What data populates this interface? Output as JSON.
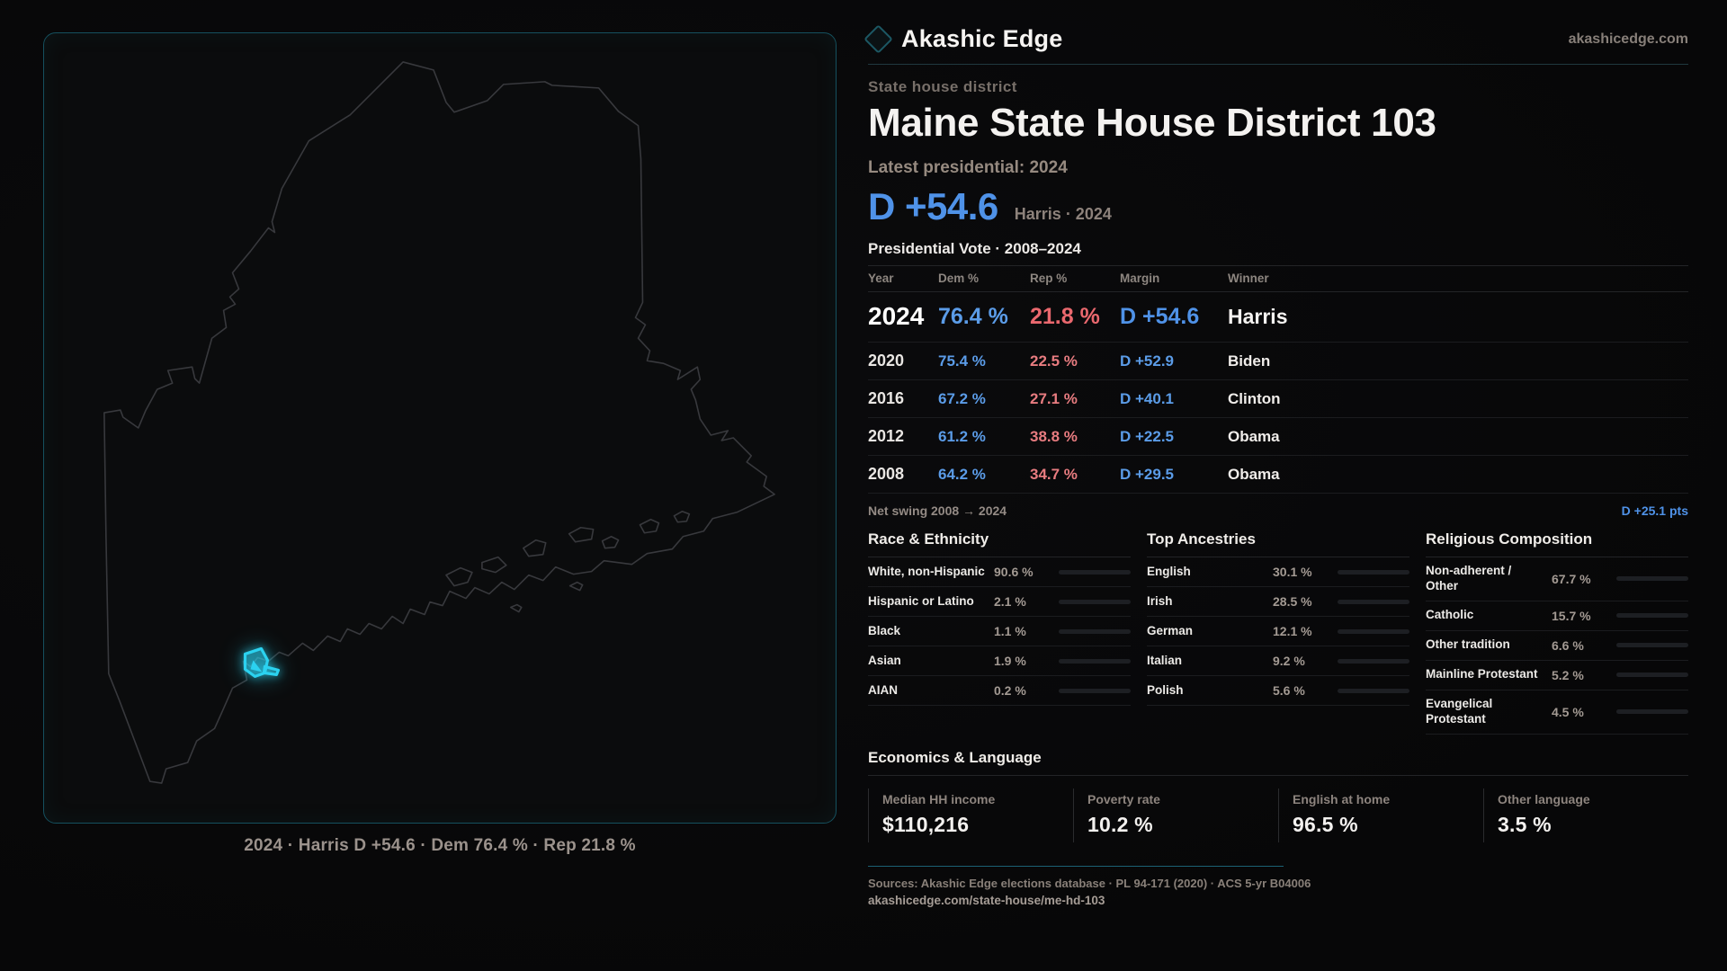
{
  "brand": {
    "name": "Akashic Edge",
    "domain": "akashicedge.com"
  },
  "page": {
    "kicker": "State house district",
    "title": "Maine State House District 103",
    "latest_label": "Latest presidential: 2024",
    "headline_margin": "D +54.6",
    "headline_detail": "Harris · 2024",
    "table_title": "Presidential Vote · 2008–2024"
  },
  "map": {
    "caption": "2024 · Harris D +54.6 · Dem 76.4 % · Rep 21.8 %",
    "district_color": "#2bd2f0",
    "outline_color": "#38393d"
  },
  "vote_table": {
    "columns": [
      "Year",
      "Dem %",
      "Rep %",
      "Margin",
      "Winner"
    ],
    "rows": [
      {
        "year": "2024",
        "dem": "76.4 %",
        "rep": "21.8 %",
        "margin": "D +54.6",
        "winner": "Harris"
      },
      {
        "year": "2020",
        "dem": "75.4 %",
        "rep": "22.5 %",
        "margin": "D +52.9",
        "winner": "Biden"
      },
      {
        "year": "2016",
        "dem": "67.2 %",
        "rep": "27.1 %",
        "margin": "D +40.1",
        "winner": "Clinton"
      },
      {
        "year": "2012",
        "dem": "61.2 %",
        "rep": "38.8 %",
        "margin": "D +22.5",
        "winner": "Obama"
      },
      {
        "year": "2008",
        "dem": "64.2 %",
        "rep": "34.7 %",
        "margin": "D +29.5",
        "winner": "Obama"
      }
    ],
    "net_swing_label": "Net swing 2008 → 2024",
    "net_swing_value": "D +25.1 pts"
  },
  "demographics": {
    "race": {
      "title": "Race & Ethnicity",
      "rows": [
        {
          "label": "White, non-Hispanic",
          "value": "90.6 %",
          "pct": 90.6,
          "color": "#9eb1c9"
        },
        {
          "label": "Hispanic or Latino",
          "value": "2.1 %",
          "pct": 2.1,
          "color": "#df9429"
        },
        {
          "label": "Black",
          "value": "1.1 %",
          "pct": 1.1,
          "color": "#9388e4"
        },
        {
          "label": "Asian",
          "value": "1.9 %",
          "pct": 1.9,
          "color": "#2fbb8b"
        },
        {
          "label": "AIAN",
          "value": "0.2 %",
          "pct": 0.2,
          "color": "#9eb1c9"
        }
      ]
    },
    "ancestries": {
      "title": "Top Ancestries",
      "rows": [
        {
          "label": "English",
          "value": "30.1 %",
          "pct": 30.1,
          "color": "#9eb1c9"
        },
        {
          "label": "Irish",
          "value": "28.5 %",
          "pct": 28.5,
          "color": "#9eb1c9"
        },
        {
          "label": "German",
          "value": "12.1 %",
          "pct": 12.1,
          "color": "#9eb1c9"
        },
        {
          "label": "Italian",
          "value": "9.2 %",
          "pct": 9.2,
          "color": "#9eb1c9"
        },
        {
          "label": "Polish",
          "value": "5.6 %",
          "pct": 5.6,
          "color": "#9eb1c9"
        }
      ]
    },
    "religion": {
      "title": "Religious Composition",
      "rows": [
        {
          "label": "Non-adherent / Other",
          "value": "67.7 %",
          "pct": 67.7,
          "color": "#7b8695"
        },
        {
          "label": "Catholic",
          "value": "15.7 %",
          "pct": 15.7,
          "color": "#e2af22"
        },
        {
          "label": "Other tradition",
          "value": "6.6 %",
          "pct": 6.6,
          "color": "#8b9097"
        },
        {
          "label": "Mainline Protestant",
          "value": "5.2 %",
          "pct": 5.2,
          "color": "#4f8fe8"
        },
        {
          "label": "Evangelical Protestant",
          "value": "4.5 %",
          "pct": 4.5,
          "color": "#e0505e"
        }
      ]
    }
  },
  "economics": {
    "title": "Economics & Language",
    "stats": [
      {
        "label": "Median HH income",
        "value": "$110,216"
      },
      {
        "label": "Poverty rate",
        "value": "10.2 %"
      },
      {
        "label": "English at home",
        "value": "96.5 %"
      },
      {
        "label": "Other language",
        "value": "3.5 %"
      }
    ]
  },
  "footer": {
    "sources": "Sources: Akashic Edge elections database · PL 94-171 (2020) · ACS 5-yr B04006",
    "permalink": "akashicedge.com/state-house/me-hd-103"
  }
}
